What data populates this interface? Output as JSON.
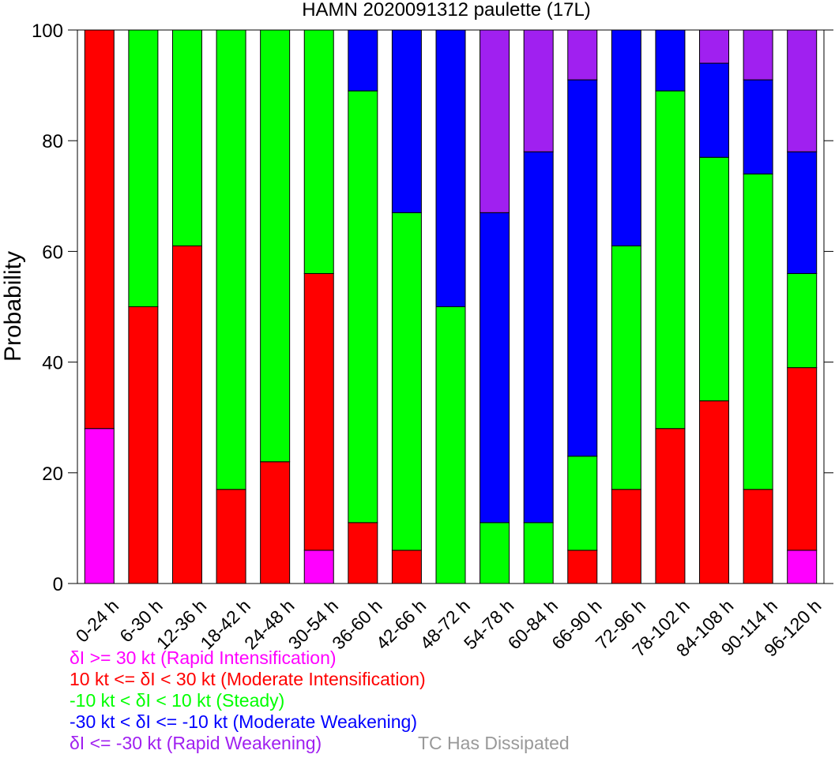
{
  "chart_data": {
    "type": "bar",
    "stacked": true,
    "title": "HAMN 2020091312 paulette (17L)",
    "xlabel": "",
    "ylabel": "Probability",
    "ylim": [
      0,
      100
    ],
    "yticks": [
      0,
      20,
      40,
      60,
      80,
      100
    ],
    "grid": false,
    "categories": [
      "0-24 h",
      "6-30 h",
      "12-36 h",
      "18-42 h",
      "24-48 h",
      "30-54 h",
      "36-60 h",
      "42-66 h",
      "48-72 h",
      "54-78 h",
      "60-84 h",
      "66-90 h",
      "72-96 h",
      "78-102 h",
      "84-108 h",
      "90-114 h",
      "96-120 h"
    ],
    "series": [
      {
        "name": "δI >= 30 kt (Rapid Intensification)",
        "color": "#ff00ff",
        "values": [
          28,
          0,
          0,
          0,
          0,
          6,
          0,
          0,
          0,
          0,
          0,
          0,
          0,
          0,
          0,
          0,
          6
        ]
      },
      {
        "name": "10 kt <= δI < 30 kt (Moderate Intensification)",
        "color": "#ff0000",
        "values": [
          72,
          50,
          61,
          17,
          22,
          50,
          11,
          6,
          0,
          0,
          0,
          6,
          17,
          28,
          33,
          17,
          33
        ]
      },
      {
        "name": "-10 kt < δI < 10 kt (Steady)",
        "color": "#00ff00",
        "values": [
          0,
          50,
          39,
          83,
          78,
          44,
          78,
          61,
          50,
          11,
          11,
          17,
          44,
          61,
          44,
          57,
          17
        ]
      },
      {
        "name": "-30 kt < δI <= -10 kt (Moderate Weakening)",
        "color": "#0000ff",
        "values": [
          0,
          0,
          0,
          0,
          0,
          0,
          11,
          33,
          50,
          56,
          67,
          68,
          39,
          11,
          17,
          17,
          22
        ]
      },
      {
        "name": "δI <= -30 kt (Rapid Weakening)",
        "color": "#a020f0",
        "values": [
          0,
          0,
          0,
          0,
          0,
          0,
          0,
          0,
          0,
          33,
          22,
          9,
          0,
          0,
          6,
          9,
          22
        ]
      }
    ],
    "dissipated_label": "TC Has Dissipated",
    "dissipated_color": "#999999"
  }
}
